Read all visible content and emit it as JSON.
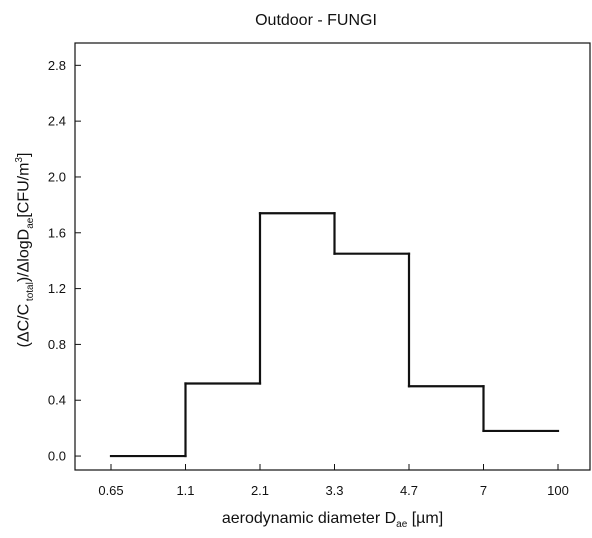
{
  "chart_data": {
    "type": "step",
    "title": "Outdoor -  FUNGI",
    "xlabel": {
      "main": "aerodynamic diameter D",
      "subscript": "ae",
      "unit": " [µm]"
    },
    "ylabel": {
      "prefix": "(ΔC/C",
      "subscript_1": " total",
      "middle": ")/ΔlogD",
      "subscript_2": "ae",
      "unit": "[CFU/m",
      "superscript": "3",
      "suffix": "]"
    },
    "x_tick_labels": [
      "0.65",
      "1.1",
      "2.1",
      "3.3",
      "4.7",
      "7",
      "100"
    ],
    "y_ticks": [
      0.0,
      0.4,
      0.8,
      1.2,
      1.6,
      2.0,
      2.4,
      2.8
    ],
    "y_tick_labels": [
      "0.0",
      "0.4",
      "0.8",
      "1.2",
      "1.6",
      "2.0",
      "2.4",
      "2.8"
    ],
    "ylim": [
      -0.1,
      2.96
    ],
    "bins": [
      {
        "from": "0.65",
        "to": "1.1",
        "value": 0.0
      },
      {
        "from": "1.1",
        "to": "2.1",
        "value": 0.52
      },
      {
        "from": "2.1",
        "to": "3.3",
        "value": 1.74
      },
      {
        "from": "3.3",
        "to": "4.7",
        "value": 1.45
      },
      {
        "from": "4.7",
        "to": "7",
        "value": 0.5
      },
      {
        "from": "7",
        "to": "100",
        "value": 0.18
      }
    ],
    "grid": false,
    "legend": "none"
  }
}
